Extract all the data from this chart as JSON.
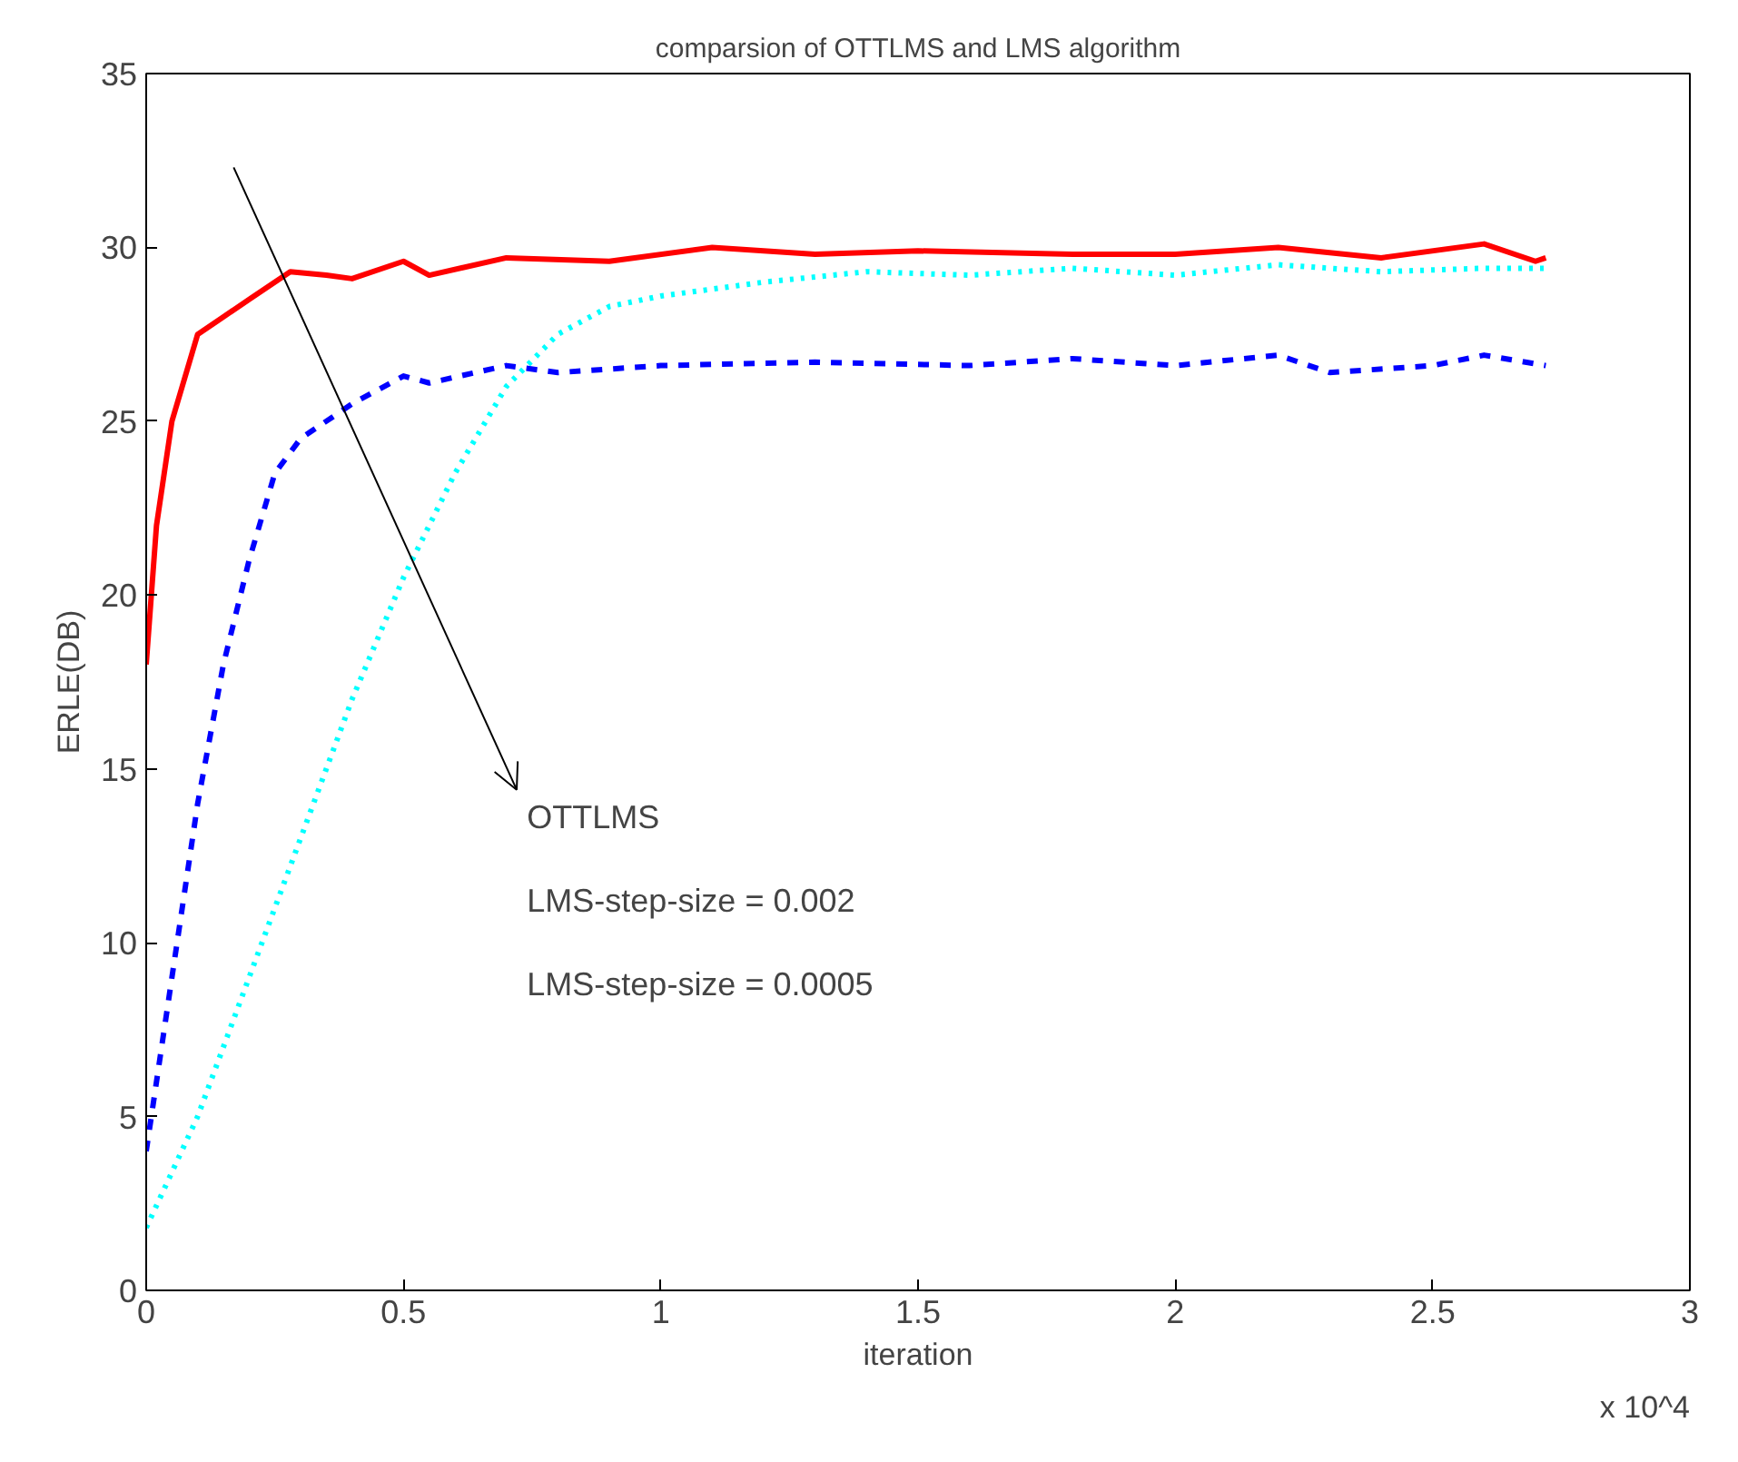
{
  "chart_data": {
    "type": "line",
    "title": "comparsion of OTTLMS and LMS algorithm",
    "xlabel": "iteration",
    "ylabel": "ERLE(DB)",
    "xlim": [
      0,
      3
    ],
    "xticks": [
      0,
      0.5,
      1,
      1.5,
      2,
      2.5,
      3
    ],
    "ylim": [
      0,
      35
    ],
    "yticks": [
      0,
      5,
      10,
      15,
      20,
      25,
      30,
      35
    ],
    "grid": false,
    "annotations": [
      "OTTLMS",
      "LMS-step-size = 0.002",
      "LMS-step-size = 0.0005",
      "x 10^4"
    ],
    "series": [
      {
        "color": "#ff0000",
        "line_style": "solid",
        "x": [
          0,
          0.02,
          0.05,
          0.1,
          0.15,
          0.2,
          0.28,
          0.35,
          0.4,
          0.5,
          0.55,
          0.7,
          0.9,
          1.1,
          1.3,
          1.5,
          1.8,
          2.0,
          2.2,
          2.4,
          2.6,
          2.7,
          2.72
        ],
        "values": [
          18,
          22,
          25,
          27.5,
          28,
          28.5,
          29.3,
          29.2,
          29.1,
          29.6,
          29.2,
          29.7,
          29.6,
          30,
          29.8,
          29.9,
          29.8,
          29.8,
          30,
          29.7,
          30.1,
          29.6,
          29.7
        ]
      },
      {
        "color": "#0000ff",
        "line_style": "dashed",
        "x": [
          0,
          0.02,
          0.05,
          0.1,
          0.15,
          0.2,
          0.25,
          0.3,
          0.4,
          0.5,
          0.55,
          0.7,
          0.8,
          1.0,
          1.3,
          1.6,
          1.8,
          2.0,
          2.2,
          2.3,
          2.5,
          2.6,
          2.72
        ],
        "values": [
          4,
          6,
          9,
          14,
          18,
          21,
          23.5,
          24.5,
          25.5,
          26.3,
          26.1,
          26.6,
          26.4,
          26.6,
          26.7,
          26.6,
          26.8,
          26.6,
          26.9,
          26.4,
          26.6,
          26.9,
          26.6
        ]
      },
      {
        "color": "#00ffff",
        "line_style": "dotted",
        "x": [
          0,
          0.1,
          0.2,
          0.3,
          0.4,
          0.5,
          0.6,
          0.7,
          0.8,
          0.9,
          1.0,
          1.2,
          1.4,
          1.6,
          1.8,
          2.0,
          2.2,
          2.4,
          2.6,
          2.72
        ],
        "values": [
          1.8,
          5,
          9,
          13,
          17,
          20.5,
          23.5,
          26,
          27.5,
          28.3,
          28.6,
          29,
          29.3,
          29.2,
          29.4,
          29.2,
          29.5,
          29.3,
          29.4,
          29.4
        ]
      }
    ]
  }
}
